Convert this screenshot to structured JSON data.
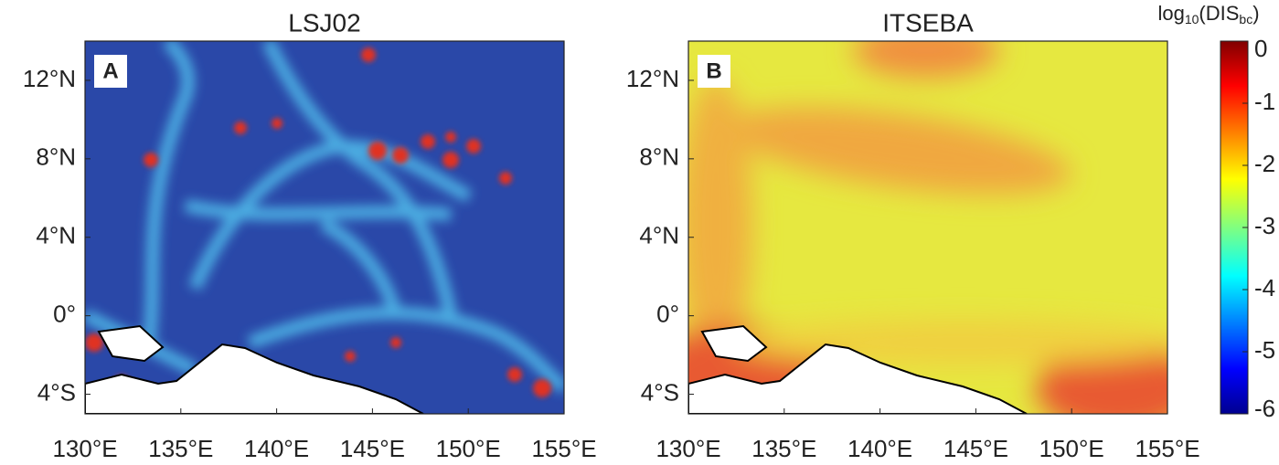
{
  "panels": [
    {
      "title": "LSJ02",
      "label": "A",
      "xlim": [
        130,
        155
      ],
      "ylim": [
        -5,
        14
      ],
      "xticks": [
        {
          "value": 130,
          "label": "130°E"
        },
        {
          "value": 135,
          "label": "135°E"
        },
        {
          "value": 140,
          "label": "140°E"
        },
        {
          "value": 145,
          "label": "145°E"
        },
        {
          "value": 150,
          "label": "150°E"
        },
        {
          "value": 155,
          "label": "155°E"
        }
      ],
      "yticks": [
        {
          "value": -4,
          "label": "4°S"
        },
        {
          "value": 0,
          "label": "0°"
        },
        {
          "value": 4,
          "label": "4°N"
        },
        {
          "value": 8,
          "label": "8°N"
        },
        {
          "value": 12,
          "label": "12°N"
        }
      ]
    },
    {
      "title": "ITSEBA",
      "label": "B",
      "xlim": [
        130,
        155
      ],
      "ylim": [
        -5,
        14
      ],
      "xticks": [
        {
          "value": 130,
          "label": "130°E"
        },
        {
          "value": 135,
          "label": "135°E"
        },
        {
          "value": 140,
          "label": "140°E"
        },
        {
          "value": 145,
          "label": "145°E"
        },
        {
          "value": 150,
          "label": "150°E"
        },
        {
          "value": 155,
          "label": "155°E"
        }
      ],
      "yticks": [
        {
          "value": -4,
          "label": "4°S"
        },
        {
          "value": 0,
          "label": "0°"
        },
        {
          "value": 4,
          "label": "4°N"
        },
        {
          "value": 8,
          "label": "8°N"
        },
        {
          "value": 12,
          "label": "12°N"
        }
      ]
    }
  ],
  "colorbar": {
    "label": {
      "base": "log",
      "base_sub": "10",
      "name": "(DIS",
      "name_sub": "bc",
      "close": ")"
    },
    "lim": [
      -6,
      0
    ],
    "ticks": [
      0,
      -1,
      -2,
      -3,
      -4,
      -5,
      -6
    ]
  }
}
